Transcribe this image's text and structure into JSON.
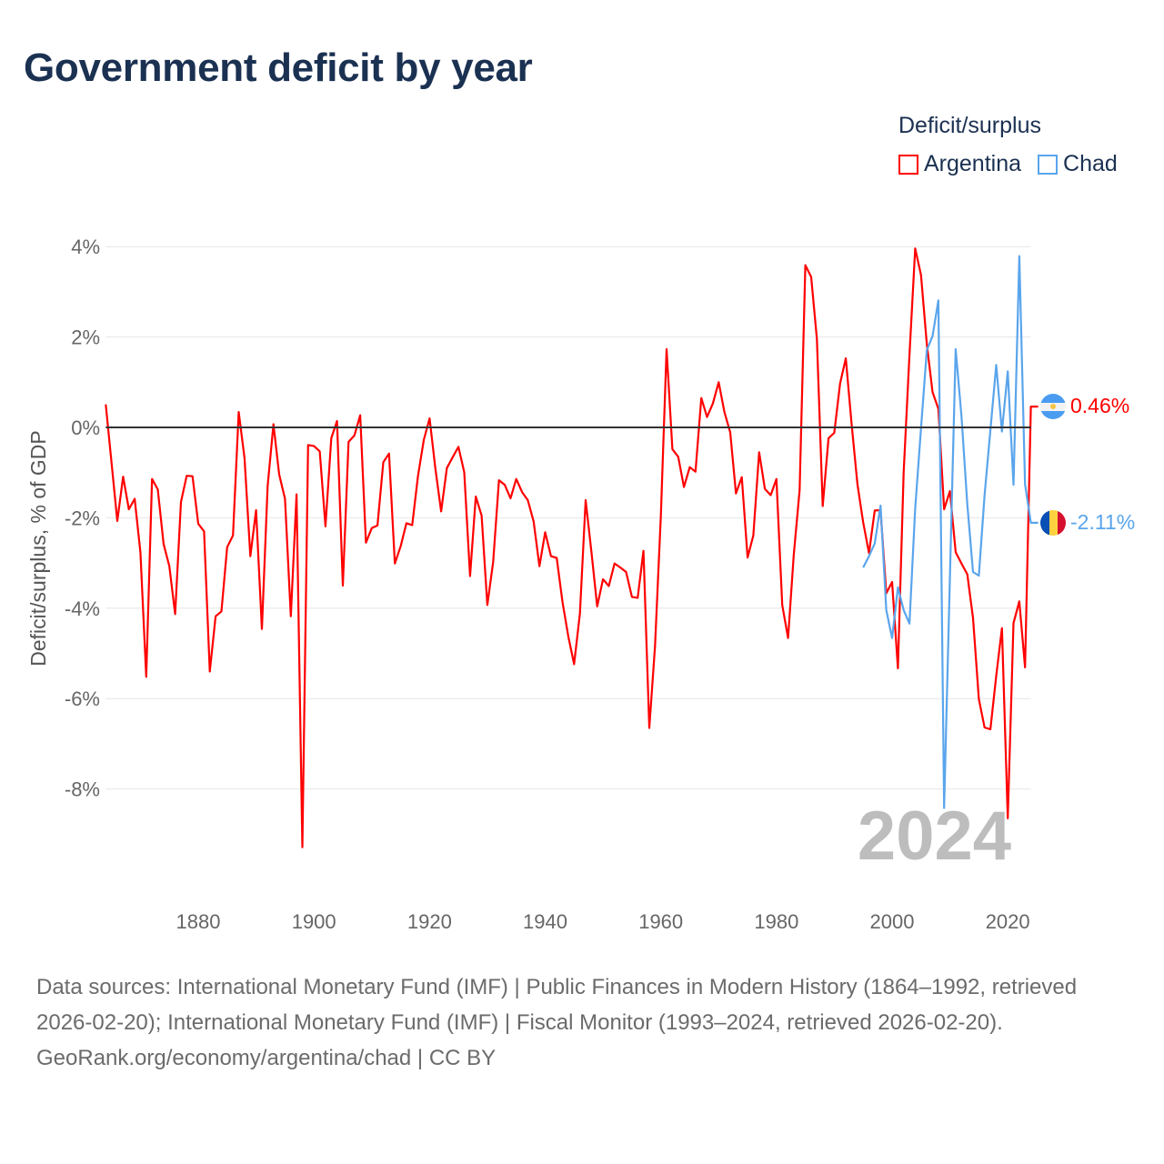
{
  "title": "Government deficit by year",
  "legend": {
    "title": "Deficit/surplus",
    "items": [
      {
        "label": "Argentina",
        "color": "#ff0000"
      },
      {
        "label": "Chad",
        "color": "#5aa5ec"
      }
    ]
  },
  "watermark_year": "2024",
  "end_labels": [
    {
      "country": "Argentina",
      "value": "0.46%",
      "flag": "argentina-flag-icon"
    },
    {
      "country": "Chad",
      "value": "-2.11%",
      "flag": "chad-flag-icon"
    }
  ],
  "footer": {
    "sources": "Data sources: International Monetary Fund (IMF) | Public Finances in Modern History (1864–1992, retrieved 2026-02-20); International Monetary Fund (IMF) | Fiscal Monitor (1993–2024, retrieved 2026-02-20).",
    "credit": "GeoRank.org/economy/argentina/chad | CC BY"
  },
  "chart_data": {
    "type": "line",
    "title": "Government deficit by year",
    "xlabel": "",
    "ylabel": "Deficit/surplus, % of GDP",
    "xlim": [
      1864,
      2024
    ],
    "ylim": [
      -10,
      4.5
    ],
    "grid": true,
    "legend_position": "top-right",
    "x_ticks": [
      1880,
      1900,
      1920,
      1940,
      1960,
      1980,
      2000,
      2020
    ],
    "x_tick_labels": [
      "1880",
      "1900",
      "1920",
      "1940",
      "1960",
      "1980",
      "2000",
      "2020"
    ],
    "y_ticks": [
      4,
      2,
      0,
      -2,
      -4,
      -6,
      -8
    ],
    "y_tick_labels": [
      "4%",
      "2%",
      "0%",
      "-2%",
      "-4%",
      "-6%",
      "-8%"
    ],
    "series": [
      {
        "name": "Argentina",
        "color": "#ff0000",
        "x": [
          1864,
          1866,
          1867,
          1868,
          1869,
          1870,
          1871,
          1872,
          1873,
          1874,
          1875,
          1876,
          1877,
          1878,
          1879,
          1880,
          1881,
          1882,
          1883,
          1884,
          1885,
          1886,
          1887,
          1888,
          1889,
          1890,
          1891,
          1892,
          1893,
          1894,
          1895,
          1896,
          1897,
          1898,
          1899,
          1900,
          1901,
          1902,
          1903,
          1904,
          1905,
          1906,
          1907,
          1908,
          1909,
          1910,
          1911,
          1912,
          1913,
          1914,
          1915,
          1916,
          1917,
          1918,
          1919,
          1920,
          1921,
          1922,
          1923,
          1924,
          1925,
          1926,
          1927,
          1928,
          1929,
          1930,
          1931,
          1932,
          1933,
          1934,
          1935,
          1936,
          1937,
          1938,
          1939,
          1940,
          1941,
          1942,
          1943,
          1944,
          1945,
          1946,
          1947,
          1948,
          1949,
          1950,
          1951,
          1952,
          1953,
          1954,
          1955,
          1956,
          1957,
          1958,
          1959,
          1960,
          1961,
          1962,
          1963,
          1964,
          1965,
          1966,
          1967,
          1968,
          1969,
          1970,
          1971,
          1972,
          1973,
          1974,
          1975,
          1976,
          1977,
          1978,
          1979,
          1980,
          1981,
          1982,
          1983,
          1984,
          1985,
          1986,
          1987,
          1988,
          1989,
          1990,
          1991,
          1992,
          1993,
          1994,
          1995,
          1996,
          1997,
          1998,
          1999,
          2000,
          2001,
          2002,
          2003,
          2004,
          2005,
          2006,
          2007,
          2008,
          2009,
          2010,
          2011,
          2012,
          2013,
          2014,
          2015,
          2016,
          2017,
          2018,
          2019,
          2020,
          2021,
          2022,
          2023,
          2024
        ],
        "values": [
          0.51,
          -2.07,
          -1.09,
          -1.81,
          -1.58,
          -2.76,
          -5.52,
          -1.14,
          -1.37,
          -2.58,
          -3.07,
          -4.13,
          -1.65,
          -1.07,
          -1.08,
          -2.13,
          -2.3,
          -5.4,
          -4.18,
          -4.07,
          -2.65,
          -2.39,
          0.34,
          -0.68,
          -2.85,
          -1.83,
          -4.46,
          -1.3,
          0.07,
          -1.04,
          -1.58,
          -4.18,
          -1.48,
          -9.29,
          -0.39,
          -0.41,
          -0.53,
          -2.19,
          -0.24,
          0.14,
          -3.5,
          -0.32,
          -0.18,
          0.27,
          -2.55,
          -2.23,
          -2.17,
          -0.77,
          -0.58,
          -3.01,
          -2.63,
          -2.12,
          -2.16,
          -1.08,
          -0.28,
          0.2,
          -0.9,
          -1.86,
          -0.9,
          -0.66,
          -0.43,
          -0.99,
          -3.29,
          -1.53,
          -1.95,
          -3.93,
          -2.98,
          -1.17,
          -1.27,
          -1.57,
          -1.14,
          -1.43,
          -1.61,
          -2.08,
          -3.07,
          -2.32,
          -2.85,
          -2.89,
          -3.87,
          -4.62,
          -5.24,
          -4.12,
          -1.61,
          -2.76,
          -3.96,
          -3.36,
          -3.51,
          -3.01,
          -3.1,
          -3.2,
          -3.75,
          -3.77,
          -2.73,
          -6.65,
          -4.84,
          -1.96,
          1.73,
          -0.48,
          -0.65,
          -1.32,
          -0.88,
          -0.98,
          0.65,
          0.23,
          0.53,
          1.0,
          0.34,
          -0.11,
          -1.46,
          -1.1,
          -2.88,
          -2.39,
          -0.55,
          -1.36,
          -1.5,
          -1.14,
          -3.93,
          -4.66,
          -2.81,
          -1.39,
          3.59,
          3.33,
          1.96,
          -1.74,
          -0.24,
          -0.12,
          0.97,
          1.53,
          0.07,
          -1.26,
          -2.1,
          -2.78,
          -1.84,
          -1.83,
          -3.67,
          -3.42,
          -5.33,
          -1.0,
          1.6,
          3.96,
          3.37,
          1.84,
          0.78,
          0.41,
          -1.81,
          -1.41,
          -2.76,
          -3.01,
          -3.25,
          -4.22,
          -6.01,
          -6.64,
          -6.68,
          -5.5,
          -4.44,
          -8.65,
          -4.33,
          -3.85,
          -5.31,
          0.46
        ]
      },
      {
        "name": "Chad",
        "color": "#5aa5ec",
        "x": [
          1995,
          1996,
          1997,
          1998,
          1999,
          2000,
          2001,
          2002,
          2003,
          2004,
          2005,
          2006,
          2007,
          2008,
          2009,
          2010,
          2011,
          2012,
          2013,
          2014,
          2015,
          2016,
          2017,
          2018,
          2019,
          2020,
          2021,
          2022,
          2023,
          2024
        ],
        "values": [
          -3.1,
          -2.85,
          -2.57,
          -1.73,
          -4.04,
          -4.66,
          -3.54,
          -4.04,
          -4.34,
          -1.79,
          -0.02,
          1.71,
          2.02,
          2.81,
          -8.42,
          -3.3,
          1.73,
          0.25,
          -1.7,
          -3.2,
          -3.28,
          -1.5,
          -0.06,
          1.38,
          -0.09,
          1.24,
          -1.27,
          3.79,
          -1.26,
          -2.11
        ]
      }
    ]
  }
}
